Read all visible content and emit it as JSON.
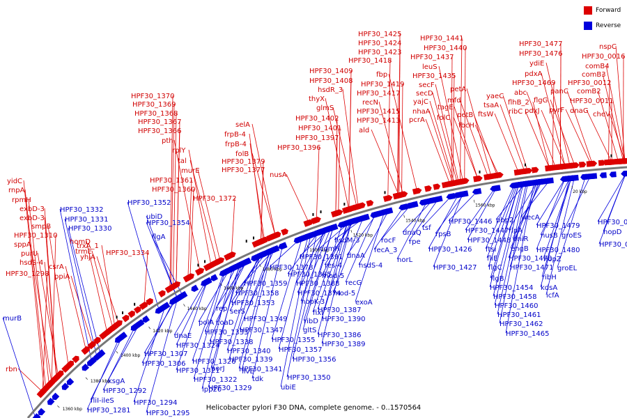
{
  "legend": {
    "forward": {
      "label": "Forward",
      "color": "#dd0000"
    },
    "reverse": {
      "label": "Reverse",
      "color": "#0000dd"
    }
  },
  "caption": "Helicobacter pylori F30 DNA, complete genome. - 0..1570564",
  "tick_labels": [
    "1360 kbp",
    "1380 kbp",
    "1400 kbp",
    "1420 kbp",
    "1440 kbp",
    "1460 kbp",
    "1480 kbp",
    "1500 kbp",
    "1520 kbp",
    "1540 kbp",
    "1560 kbp",
    "20 kbp"
  ],
  "forward_labels": [
    "rbn",
    "yidC",
    "rnpA",
    "rpmH",
    "exbD-3",
    "exbD-3",
    "smpB",
    "HPF30_1310",
    "sppA",
    "purU",
    "hsdS-4",
    "HPF30_1298",
    "homD",
    "trmE",
    "csrA",
    "ppiA",
    "yhjA",
    "trxA_1",
    "HPF30_1334",
    "HPF30_1370",
    "HPF30_1369",
    "HPF30_1368",
    "HPF30_1367",
    "HPF30_1366",
    "pth",
    "rplY",
    "tal",
    "murE",
    "HPF30_1361",
    "HPF30_1360",
    "HPF30_1372",
    "selA",
    "frpB-4",
    "frpB-4",
    "folB",
    "HPF30_1379",
    "HPF30_1377",
    "nusA",
    "HPF30_1409",
    "HPF30_1408",
    "hsdR_3",
    "thyX",
    "glmS",
    "HPF30_1402",
    "HPF30_1401",
    "HPF30_1397",
    "HPF30_1396",
    "HPF30_1425",
    "HPF30_1424",
    "HPF30_1423",
    "HPF30_1418",
    "fbp",
    "HPF30_1419",
    "HPF30_1417",
    "recN",
    "HPF30_1415",
    "HPF30_1413",
    "ald",
    "HPF30_1441",
    "HPF30_1440",
    "HPF30_1437",
    "leuS",
    "HPF30_1435",
    "secF",
    "secD",
    "yajC",
    "nhaA",
    "pcrA",
    "tagE",
    "folC",
    "petA",
    "mfd",
    "petB",
    "fbcH",
    "yaeC",
    "tsaA",
    "ftsW",
    "HPF30_1477",
    "HPF30_1476",
    "ydiE",
    "pdxA",
    "HPF30_1469",
    "abc",
    "flhB_2",
    "ribC",
    "pdxJ",
    "flgG",
    "panC",
    "pyrF",
    "nspC",
    "HPF30_0016",
    "comB4",
    "comB3",
    "HPF30_0012",
    "comB2",
    "HPF30_0011",
    "dnaG",
    "cheV"
  ],
  "reverse_labels": [
    "murB",
    "HPF30_1332",
    "HPF30_1331",
    "HPF30_1330",
    "ubiD",
    "HPF30_1352",
    "HPF30_1354",
    "flgA",
    "ksgA",
    "HPF30_1292",
    "fliI-ileS",
    "HPF30_1294",
    "HPF30_1281",
    "HPF30_1295",
    "HPF30_1307",
    "HPF30_1306",
    "HPF30_1321",
    "HPF30_1322",
    "lpp20",
    "HPF30_1324",
    "HPF30_1326",
    "HPF30_1329",
    "HPF30_1339",
    "HPF30_1338",
    "HPF30_1333",
    "HPF30_1340",
    "HPF30_1341",
    "HPF30_1350",
    "ubiE",
    "tdk",
    "ilvE",
    "horJ",
    "dnaE",
    "polA",
    "coaD",
    "rep",
    "serS",
    "HPF30_1349",
    "HPF30_1347",
    "HPF30_1353",
    "HPF30_1358",
    "HPF30_1359",
    "HPF30_1355",
    "HPF30_1357",
    "HPF30_1356",
    "HPF30_1378",
    "HPF30_1391",
    "HPF30_1385",
    "HPF30_1388",
    "HPF30_1374",
    "hopK-3",
    "fixI",
    "ribD",
    "gltS",
    "HPF30_1387",
    "HPF30_1390",
    "HPF30_1386",
    "HPF30_1389",
    "res-4",
    "comH",
    "mod-5",
    "recG",
    "mod-5",
    "exoA",
    "hsdM-3",
    "dnaA",
    "hsdS-4",
    "rocF",
    "fecA_3",
    "horL",
    "dnaQ",
    "rpe",
    "tsf",
    "rpsB",
    "HPF30_1426",
    "HPF30_1427",
    "HPF30_1446",
    "HPF30_1447",
    "HPF30_1448",
    "ftsI",
    "fliE",
    "flgC",
    "flgB",
    "HPF30_1454",
    "HPF30_1458",
    "HPF30_1460",
    "HPF30_1461",
    "HPF30_1462",
    "HPF30_1465",
    "pbp2",
    "rlpA",
    "engB",
    "dniR",
    "HPF30_1470",
    "HPF30_1471",
    "wecA",
    "HPF30_1479",
    "nusB",
    "HPF30_1480",
    "hopZ",
    "ribH",
    "kdsA",
    "icfA",
    "groES",
    "groEL",
    "HPF30_0019",
    "hopD",
    "HPF30_0020"
  ]
}
